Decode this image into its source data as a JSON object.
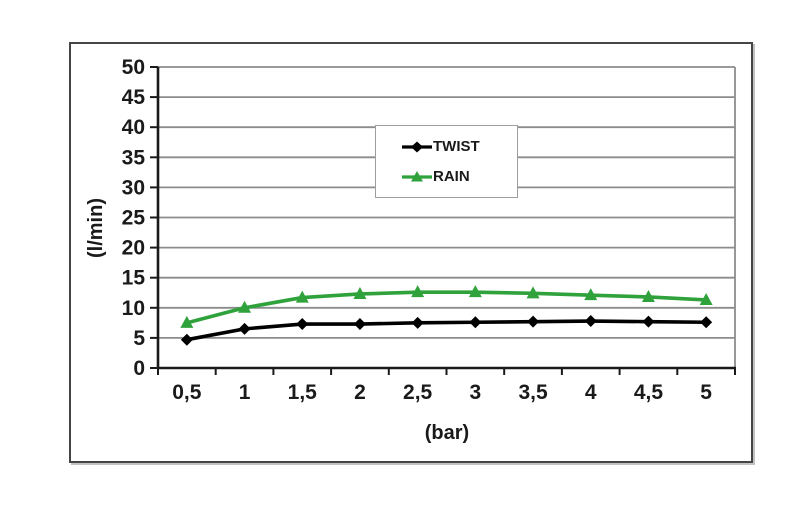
{
  "colors": {
    "background": "#ffffff",
    "frame_border": "#454545",
    "axis": "#1a1a1a",
    "grid": "#8c8c8c",
    "tick_text": "#1a1a1a",
    "legend_border": "#9e9e9e"
  },
  "chart_data": {
    "type": "line",
    "title": "",
    "xlabel": "(bar)",
    "ylabel": "(l/min)",
    "x": [
      0.5,
      1,
      1.5,
      2,
      2.5,
      3,
      3.5,
      4,
      4.5,
      5
    ],
    "x_tick_labels": [
      "0,5",
      "1",
      "1,5",
      "2",
      "2,5",
      "3",
      "3,5",
      "4",
      "4,5",
      "5"
    ],
    "ylim": [
      0,
      50
    ],
    "ytick_step": 5,
    "y_tick_labels": [
      "0",
      "5",
      "10",
      "15",
      "20",
      "25",
      "30",
      "35",
      "40",
      "45",
      "50"
    ],
    "grid": true,
    "legend_position": "upper-center",
    "series": [
      {
        "name": "TWIST",
        "marker": "diamond",
        "color": "#000000",
        "values": [
          4.7,
          6.5,
          7.3,
          7.3,
          7.5,
          7.6,
          7.7,
          7.8,
          7.7,
          7.6
        ]
      },
      {
        "name": "RAIN",
        "marker": "triangle",
        "color": "#2fa23c",
        "values": [
          7.5,
          10,
          11.7,
          12.3,
          12.6,
          12.6,
          12.4,
          12.1,
          11.8,
          11.3
        ]
      }
    ]
  }
}
